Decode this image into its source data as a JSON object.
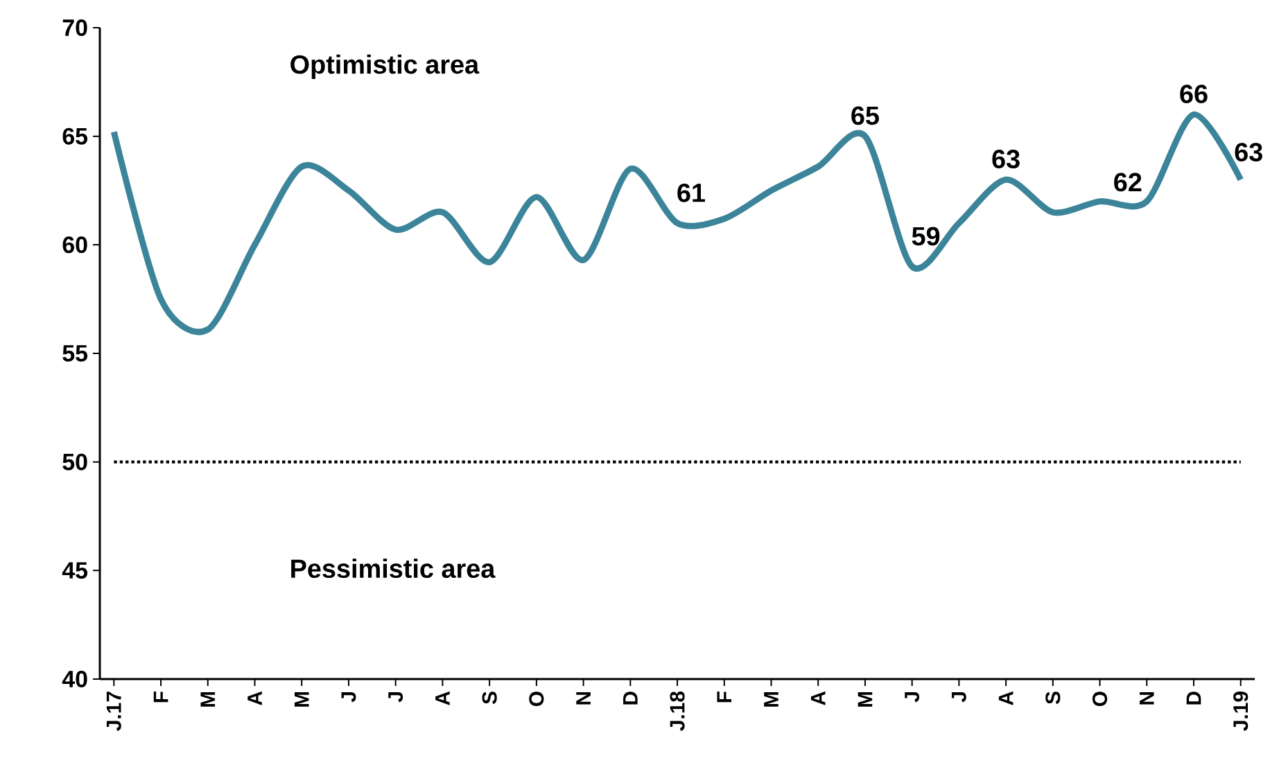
{
  "chart_data": {
    "type": "line",
    "categories": [
      "J.17",
      "F",
      "M",
      "A",
      "M",
      "J",
      "J",
      "A",
      "S",
      "O",
      "N",
      "D",
      "J.18",
      "F",
      "M",
      "A",
      "M",
      "J",
      "J",
      "A",
      "S",
      "O",
      "N",
      "D",
      "J.19"
    ],
    "series": [
      {
        "color": "#3b8499",
        "values": [
          65.2,
          57.5,
          56.1,
          60,
          63.6,
          62.5,
          60.7,
          61.5,
          59.2,
          62.2,
          59.3,
          63.5,
          61,
          61.2,
          62.5,
          63.6,
          65,
          59,
          61,
          63,
          61.5,
          62,
          62,
          66,
          63
        ],
        "value_labels": [
          null,
          null,
          null,
          null,
          null,
          null,
          null,
          null,
          null,
          null,
          null,
          null,
          "61",
          null,
          null,
          null,
          "65",
          "59",
          null,
          "63",
          null,
          null,
          "62",
          "66",
          "63"
        ]
      }
    ],
    "ylim": [
      40,
      70
    ],
    "yticks": [
      40,
      45,
      50,
      55,
      60,
      65,
      70
    ],
    "grid": false,
    "marker": "none",
    "line_style": "solid",
    "ref_lines": [
      {
        "axis": "y",
        "value": 50,
        "color": "#000000",
        "line_style": "dotted"
      }
    ],
    "annotations": [
      "Optimistic area",
      "Pessimistic area"
    ]
  }
}
